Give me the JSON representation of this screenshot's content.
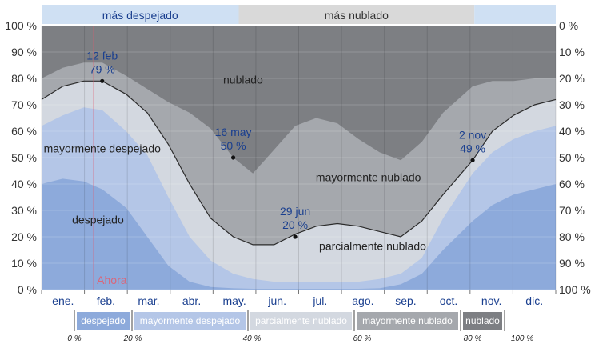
{
  "chart_data": {
    "type": "area",
    "top_bands": [
      {
        "label": "más despejado",
        "from_month": 0,
        "to_month": 4.6,
        "color": "#cfe0f3"
      },
      {
        "label": "más nublado",
        "from_month": 4.6,
        "to_month": 10.1,
        "color": "#d9d9d9"
      }
    ],
    "months": [
      "ene.",
      "feb.",
      "mar.",
      "abr.",
      "may.",
      "jun.",
      "jul.",
      "ago.",
      "sep.",
      "oct.",
      "nov.",
      "dic."
    ],
    "y_left_ticks": [
      "0 %",
      "10 %",
      "20 %",
      "30 %",
      "40 %",
      "50 %",
      "60 %",
      "70 %",
      "80 %",
      "90 %",
      "100 %"
    ],
    "y_right_ticks": [
      "100 %",
      "90 %",
      "80 %",
      "70 %",
      "60 %",
      "50 %",
      "40 %",
      "30 %",
      "20 %",
      "10 %",
      "0 %"
    ],
    "ylim": [
      0,
      100
    ],
    "x_days": [
      0,
      15,
      30,
      43,
      60,
      75,
      90,
      105,
      120,
      136,
      150,
      165,
      180,
      195,
      210,
      225,
      240,
      255,
      270,
      285,
      306,
      320,
      335,
      350,
      365
    ],
    "series": [
      {
        "name": "despejado",
        "color": "#8daadb",
        "values": [
          40,
          42,
          41,
          38,
          31,
          20,
          9,
          3,
          1,
          0.5,
          0.3,
          0.3,
          0.3,
          0.3,
          0.3,
          0.3,
          0.5,
          2,
          6,
          15,
          26,
          32,
          36,
          38,
          40
        ]
      },
      {
        "name": "mayormente despejado",
        "color": "#b4c6e7",
        "values": [
          62,
          66,
          69,
          68,
          60,
          51,
          35,
          20,
          11,
          6,
          4,
          3,
          3,
          3,
          3,
          3,
          4,
          6,
          12,
          27,
          44,
          52,
          57,
          60,
          62
        ]
      },
      {
        "name": "parcialmente nublado",
        "color": "#d3d8e0",
        "values": [
          72,
          77,
          79,
          79,
          74,
          67,
          55,
          40,
          27,
          20,
          17,
          17,
          21,
          24,
          25,
          24,
          22,
          20,
          26,
          36,
          49,
          60,
          66,
          70,
          72
        ]
      },
      {
        "name": "mayormente nublado",
        "color": "#a5a8ad",
        "values": [
          80,
          84,
          86,
          86,
          81,
          76,
          71,
          67,
          61,
          50,
          44,
          53,
          62,
          65,
          63,
          57,
          52,
          49,
          56,
          67,
          77,
          79,
          79,
          80,
          80
        ]
      },
      {
        "name": "nublado",
        "color": "#7d7f83",
        "values": [
          100,
          100,
          100,
          100,
          100,
          100,
          100,
          100,
          100,
          100,
          100,
          100,
          100,
          100,
          100,
          100,
          100,
          100,
          100,
          100,
          100,
          100,
          100,
          100,
          100
        ]
      }
    ],
    "band_labels": [
      {
        "text": "nublado",
        "day": 143,
        "y": 78
      },
      {
        "text": "mayormente despejado",
        "day": 43,
        "y": 52
      },
      {
        "text": "mayormente nublado",
        "day": 232,
        "y": 41
      },
      {
        "text": "despejado",
        "day": 40,
        "y": 25
      },
      {
        "text": "parcialmente nublado",
        "day": 235,
        "y": 15
      }
    ],
    "annotations": [
      {
        "date": "12 feb",
        "value": "79 %",
        "day": 43,
        "y": 79
      },
      {
        "date": "16 may",
        "value": "50 %",
        "day": 136,
        "y": 50
      },
      {
        "date": "29 jun",
        "value": "20 %",
        "day": 180,
        "y": 20
      },
      {
        "date": "2 nov",
        "value": "49 %",
        "day": 306,
        "y": 49
      }
    ],
    "now_label": "Ahora",
    "now_day": 37,
    "legend": [
      {
        "label": "despejado",
        "color": "#8daadb"
      },
      {
        "label": "mayormente despejado",
        "color": "#b4c6e7"
      },
      {
        "label": "parcialmente nublado",
        "color": "#d3d8e0"
      },
      {
        "label": "mayormente nublado",
        "color": "#a5a8ad"
      },
      {
        "label": "nublado",
        "color": "#7d7f83"
      }
    ],
    "legend_scale": [
      "0 %",
      "20 %",
      "40 %",
      "60 %",
      "80 %",
      "100 %"
    ]
  }
}
